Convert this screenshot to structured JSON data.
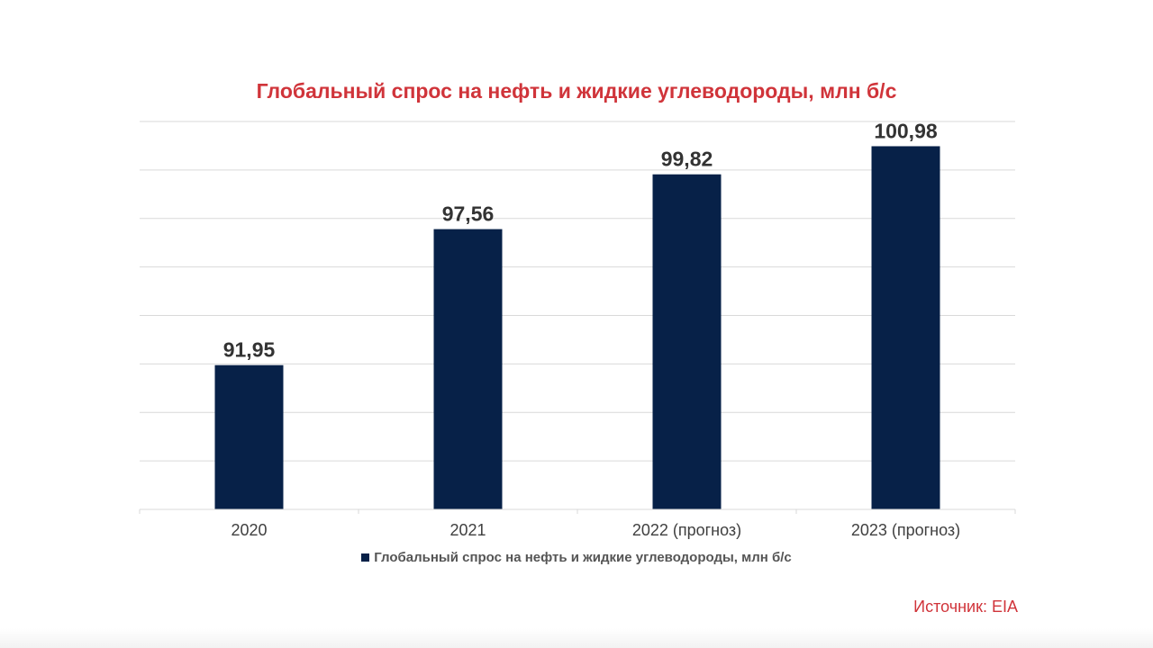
{
  "chart_data": {
    "type": "bar",
    "title": "Глобальный спрос на нефть и жидкие углеводороды, млн б/с",
    "categories": [
      "2020",
      "2021",
      "2022 (прогноз)",
      "2023 (прогноз)"
    ],
    "series": [
      {
        "name": "Глобальный спрос на нефть и жидкие углеводороды, млн б/с",
        "values": [
          91.95,
          97.56,
          99.82,
          100.98
        ],
        "value_labels": [
          "91,95",
          "97,56",
          "99,82",
          "100,98"
        ]
      }
    ],
    "xlabel": "",
    "ylabel": "",
    "ylim": [
      86,
      102
    ],
    "y_gridlines": [
      86,
      88,
      90,
      92,
      94,
      96,
      98,
      100,
      102
    ],
    "y_tick_labels_visible": false,
    "grid": true,
    "legend_position": "bottom-center"
  },
  "colors": {
    "bar": "#072148",
    "title": "#d0343a",
    "source": "#d0343a",
    "grid": "#d9d9d9",
    "axis_text": "#404040",
    "data_label": "#333333"
  },
  "legend": {
    "label": "Глобальный спрос на нефть и жидкие углеводороды, млн б/с"
  },
  "source": {
    "text": "Источник: EIA"
  }
}
